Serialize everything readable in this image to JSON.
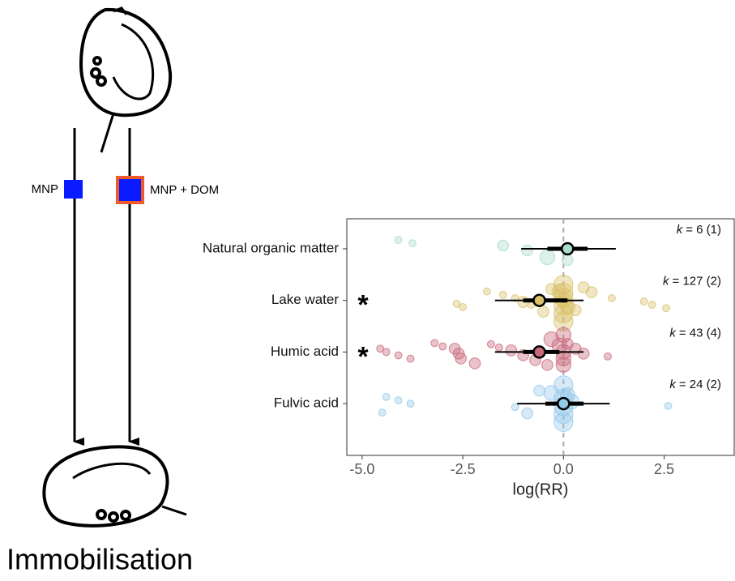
{
  "diagram": {
    "treatments": [
      "MNP",
      "MNP + DOM"
    ],
    "outcome": "Immobilisation"
  },
  "chart_data": {
    "type": "orchard",
    "x_label": "log(RR)",
    "categories": [
      "Natural organic matter",
      "Lake water",
      "Humic acid",
      "Fulvic acid"
    ],
    "colors": [
      "#a9dcc9",
      "#d9c06a",
      "#c8687a",
      "#95c9ea"
    ],
    "estimates": [
      0.1,
      -0.6,
      -0.6,
      0.0
    ],
    "ci": [
      [
        -0.4,
        0.6
      ],
      [
        -1.0,
        0.1
      ],
      [
        -1.0,
        -0.1
      ],
      [
        -0.45,
        0.5
      ]
    ],
    "pi": [
      [
        -1.05,
        1.3
      ],
      [
        -1.7,
        0.5
      ],
      [
        -1.7,
        0.5
      ],
      [
        -1.15,
        1.15
      ]
    ],
    "k_symbol": "k",
    "k_text": [
      "= 6 (1)",
      "= 127 (2)",
      "= 43 (4)",
      "= 24 (2)"
    ],
    "significance": [
      null,
      "*",
      "*",
      null
    ],
    "point_x": [
      [
        -4.1,
        -3.75,
        -1.5,
        -0.9,
        -0.4,
        0.1
      ],
      [
        -2.65,
        -2.5,
        -1.9,
        -1.5,
        -1.2,
        -1.0,
        -0.8,
        -0.5,
        -0.3,
        -0.1,
        0,
        0,
        0,
        0,
        0,
        0,
        0,
        0.1,
        0.3,
        0.5,
        0.7,
        1.2,
        2.0,
        2.2,
        2.55
      ],
      [
        -4.55,
        -4.4,
        -4.1,
        -3.8,
        -3.2,
        -3.0,
        -2.7,
        -2.6,
        -2.55,
        -2.2,
        -1.8,
        -1.6,
        -1.3,
        -1.0,
        -0.7,
        -0.4,
        -0.3,
        -0.1,
        0,
        0,
        0,
        0,
        0.1,
        0.3,
        0.5,
        1.1
      ],
      [
        -4.5,
        -4.4,
        -4.1,
        -3.8,
        -1.2,
        -0.9,
        -0.6,
        -0.3,
        0,
        0,
        0,
        0,
        0,
        0.1,
        0.2,
        2.6
      ]
    ],
    "point_size": [
      [
        1,
        1,
        2,
        2,
        3,
        2
      ],
      [
        1,
        1,
        1,
        1,
        1,
        2,
        1,
        2,
        2,
        3,
        4,
        4,
        4,
        4,
        4,
        4,
        3,
        3,
        2,
        2,
        2,
        1,
        1,
        1,
        1
      ],
      [
        1,
        1,
        1,
        1,
        1,
        1,
        2,
        2,
        2,
        2,
        1,
        1,
        2,
        2,
        2,
        2,
        3,
        3,
        3,
        3,
        3,
        3,
        2,
        2,
        2,
        1
      ],
      [
        1,
        1,
        1,
        1,
        1,
        2,
        2,
        3,
        4,
        4,
        4,
        4,
        4,
        3,
        3,
        1
      ]
    ],
    "xlim": [
      -5.38,
      4.24
    ],
    "xticks": [
      {
        "value": -5,
        "label": "-5.0"
      },
      -2.5,
      {
        "value": 0,
        "label": "0.0"
      },
      2.5
    ],
    "reference_line": 0
  }
}
